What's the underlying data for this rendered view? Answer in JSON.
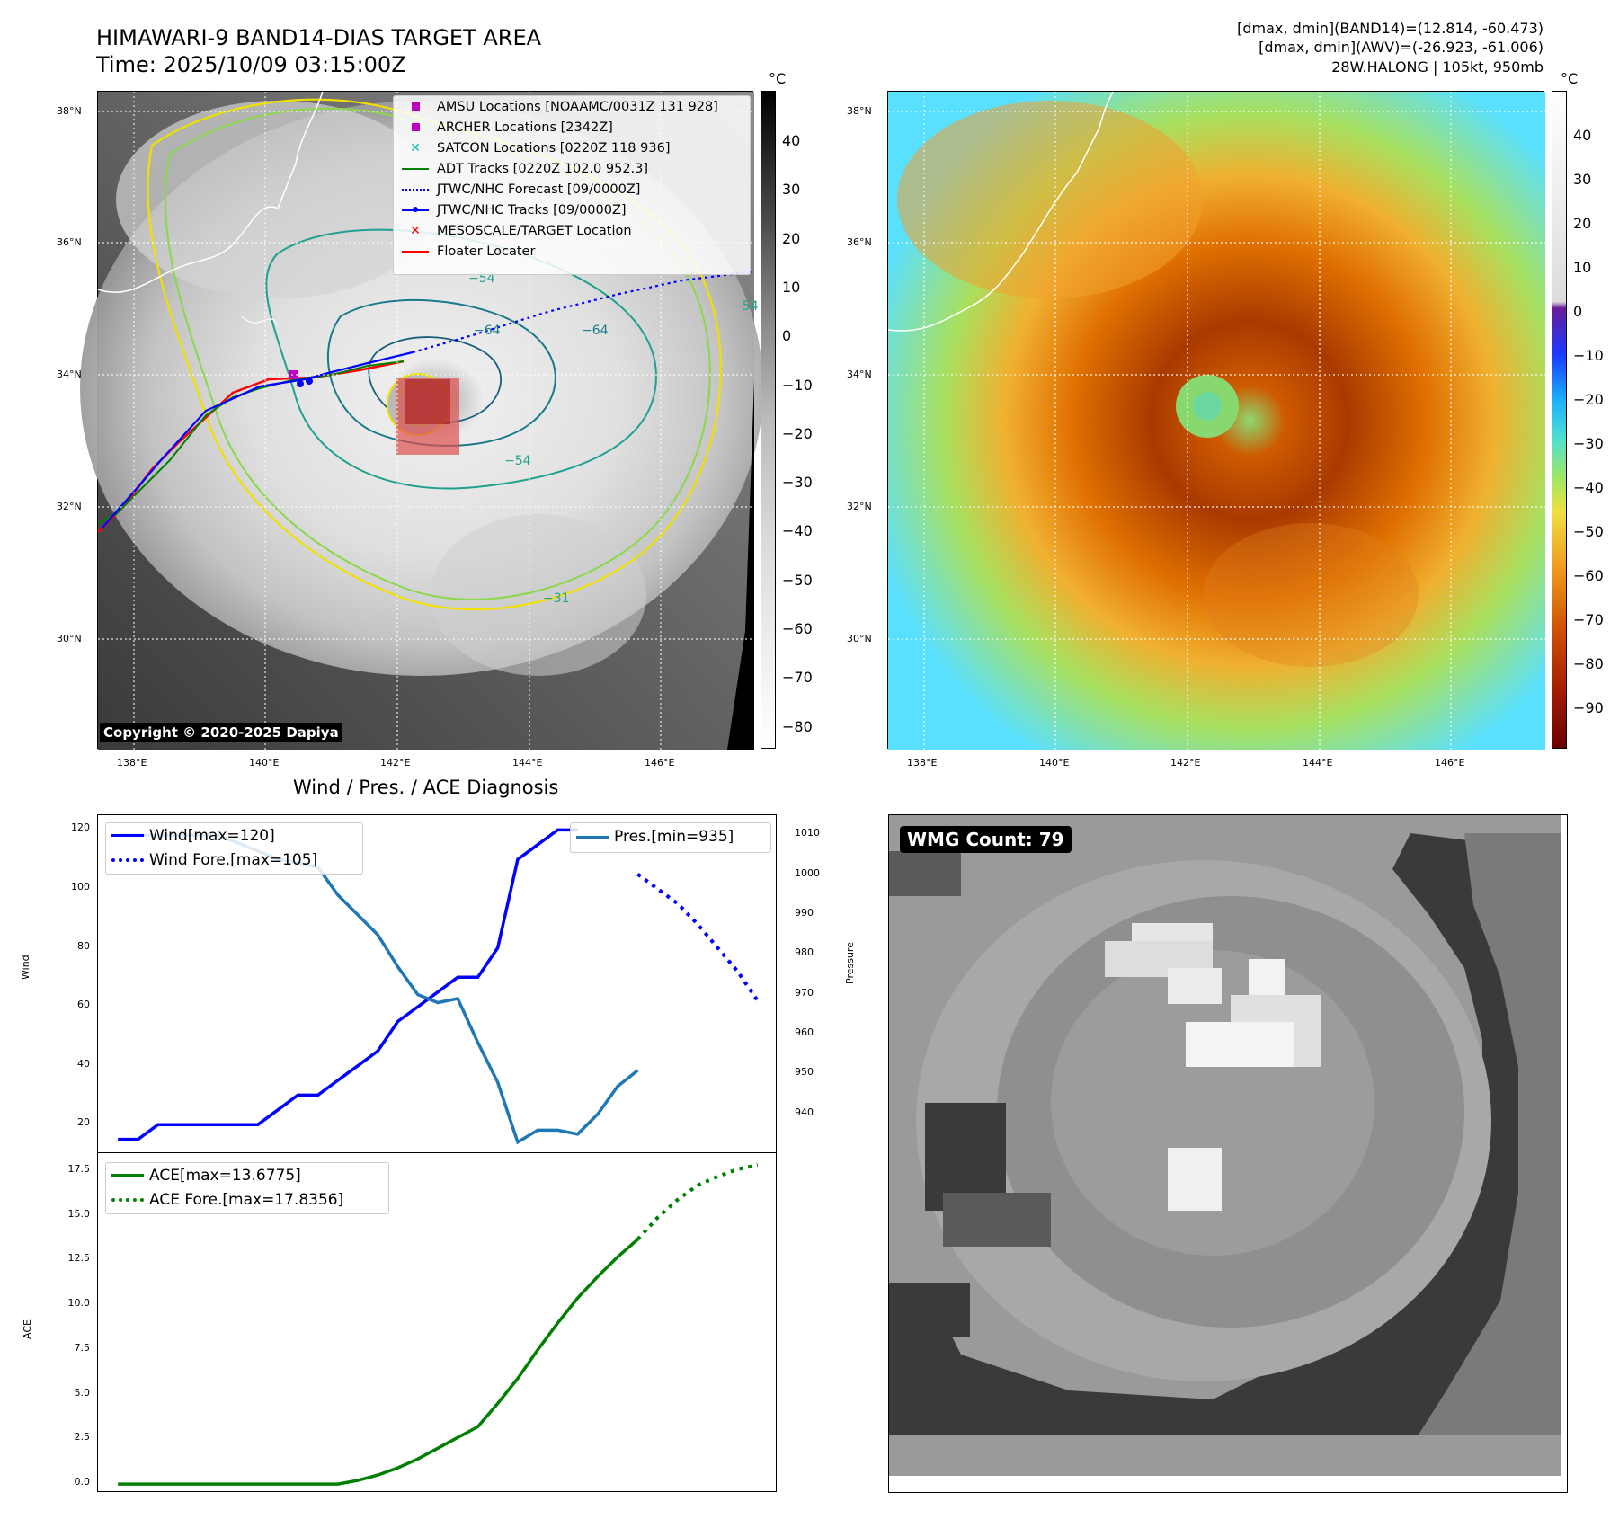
{
  "header": {
    "title": "HIMAWARI-9 BAND14-DIAS TARGET AREA",
    "time": "Time: 2025/10/09 03:15:00Z",
    "info_line1": "[dmax, dmin](BAND14)=(12.814, -60.473)",
    "info_line2": "[dmax, dmin](AWV)=(-26.923, -61.006)",
    "info_line3": "28W.HALONG | 105kt, 950mb"
  },
  "map_axes": {
    "lat_labels": [
      "38°N",
      "36°N",
      "34°N",
      "32°N",
      "30°N"
    ],
    "lon_labels": [
      "138°E",
      "140°E",
      "142°E",
      "144°E",
      "146°E"
    ]
  },
  "ir_panel": {
    "colorbar_unit": "°C",
    "colorbar_ticks": [
      "40",
      "30",
      "20",
      "10",
      "0",
      "−10",
      "−20",
      "−30",
      "−40",
      "−50",
      "−60",
      "−70",
      "−80"
    ],
    "contour_labels": [
      "−54",
      "−54",
      "−64",
      "−64",
      "−54",
      "−31"
    ],
    "copyright": "Copyright © 2020-2025 Dapiya",
    "legend": [
      {
        "label": "AMSU Locations [NOAAMC/0031Z 131 928]",
        "color": "#c000c0"
      },
      {
        "label": "ARCHER Locations [2342Z]",
        "color": "#c000c0"
      },
      {
        "label": "SATCON Locations [0220Z 118 936]",
        "color": "#00c0c0"
      },
      {
        "label": "ADT Tracks [0220Z 102.0 952.3]",
        "color": "#008000"
      },
      {
        "label": "JTWC/NHC Forecast [09/0000Z]",
        "color": "#0000ff"
      },
      {
        "label": "JTWC/NHC Tracks [09/0000Z]",
        "color": "#0000ff"
      },
      {
        "label": "MESOSCALE/TARGET Location",
        "color": "#ff0000"
      },
      {
        "label": "Floater Locater",
        "color": "#ff0000"
      }
    ]
  },
  "color_panel": {
    "colorbar_unit": "°C",
    "colorbar_ticks": [
      "40",
      "30",
      "20",
      "10",
      "0",
      "−10",
      "−20",
      "−30",
      "−40",
      "−50",
      "−60",
      "−70",
      "−80",
      "−90"
    ]
  },
  "diag_panel": {
    "title": "Wind / Pres. / ACE Diagnosis",
    "legend_wind": "Wind[max=120]",
    "legend_wind_fore": "Wind Fore.[max=105]",
    "legend_pres": "Pres.[min=935]",
    "legend_ace": "ACE[max=13.6775]",
    "legend_ace_fore": "ACE Fore.[max=17.8356]",
    "ylabel_wind": "Wind",
    "ylabel_pres": "Pressure",
    "ylabel_ace": "ACE"
  },
  "wmg_panel": {
    "label": "WMG Count: 79"
  },
  "chart_data": [
    {
      "type": "line",
      "title": "Wind / Pres. / ACE Diagnosis",
      "ylabel": "Wind",
      "ylim": [
        10,
        125
      ],
      "yticks": [
        20,
        40,
        60,
        80,
        100,
        120
      ],
      "series": [
        {
          "name": "Wind[max=120]",
          "color": "#0000ff",
          "style": "solid",
          "x": [
            0,
            1,
            2,
            3,
            4,
            5,
            6,
            7,
            8,
            9,
            10,
            11,
            12,
            13,
            14,
            15,
            16,
            17,
            18,
            19,
            20,
            21,
            22,
            23
          ],
          "values": [
            15,
            15,
            20,
            20,
            20,
            20,
            20,
            20,
            25,
            30,
            30,
            35,
            40,
            45,
            55,
            60,
            65,
            70,
            70,
            80,
            110,
            115,
            120,
            120
          ]
        },
        {
          "name": "Wind Fore.[max=105]",
          "color": "#0000ff",
          "style": "dotted",
          "x": [
            26,
            27,
            28,
            29,
            30,
            31,
            32
          ],
          "values": [
            105,
            100,
            95,
            88,
            80,
            72,
            62
          ]
        }
      ],
      "y2label": "Pressure",
      "y2lim": [
        930,
        1015
      ],
      "y2ticks": [
        940,
        950,
        960,
        970,
        980,
        990,
        1000,
        1010
      ],
      "series2": [
        {
          "name": "Pres.[min=935]",
          "color": "#1f77b4",
          "style": "solid",
          "x": [
            0,
            1,
            2,
            3,
            4,
            5,
            6,
            7,
            8,
            9,
            10,
            11,
            12,
            13,
            14,
            15,
            16,
            17,
            18,
            19,
            20,
            21,
            22,
            23,
            24,
            25,
            26
          ],
          "values": [
            1010,
            1010,
            1010,
            1010,
            1010,
            1010,
            1008,
            1006,
            1004,
            1003,
            1002,
            995,
            990,
            985,
            977,
            970,
            968,
            969,
            958,
            948,
            933,
            936,
            936,
            935,
            940,
            947,
            951
          ]
        }
      ]
    },
    {
      "type": "line",
      "ylabel": "ACE",
      "ylim": [
        -0.5,
        18.5
      ],
      "yticks": [
        0.0,
        2.5,
        5.0,
        7.5,
        10.0,
        12.5,
        15.0,
        17.5
      ],
      "series": [
        {
          "name": "ACE[max=13.6775]",
          "color": "#008000",
          "style": "solid",
          "x": [
            0,
            2,
            4,
            6,
            8,
            10,
            11,
            12,
            13,
            14,
            15,
            16,
            17,
            18,
            19,
            20,
            21,
            22,
            23,
            24,
            25,
            26
          ],
          "values": [
            0,
            0,
            0,
            0,
            0,
            0,
            0,
            0.2,
            0.5,
            0.9,
            1.4,
            2.0,
            2.6,
            3.2,
            4.5,
            5.9,
            7.5,
            9.0,
            10.4,
            11.6,
            12.7,
            13.68
          ]
        },
        {
          "name": "ACE Fore.[max=17.8356]",
          "color": "#008000",
          "style": "dotted",
          "x": [
            26,
            27,
            28,
            29,
            30,
            31,
            32
          ],
          "values": [
            13.68,
            14.9,
            15.9,
            16.7,
            17.2,
            17.6,
            17.84
          ]
        }
      ]
    }
  ]
}
